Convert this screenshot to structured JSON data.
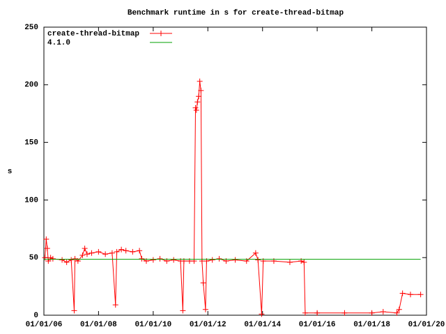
{
  "chart_data": {
    "type": "line",
    "title": "Benchmark runtime in s for create-thread-bitmap",
    "y_label": "s",
    "xlim": [
      "01/01/06",
      "01/01/20"
    ],
    "xticks": [
      "01/01/06",
      "01/01/08",
      "01/01/10",
      "01/01/12",
      "01/01/14",
      "01/01/16",
      "01/01/18",
      "01/01/20"
    ],
    "ylim": [
      0,
      250
    ],
    "yticks": [
      0,
      50,
      100,
      150,
      200,
      250
    ],
    "legend": "top-left",
    "series": [
      {
        "name": "create-thread-bitmap",
        "color": "#ff0000",
        "markers": true,
        "x": [
          "01/15/06",
          "02/01/06",
          "02/15/06",
          "03/01/06",
          "04/01/06",
          "05/01/06",
          "09/01/06",
          "11/01/06",
          "01/01/07",
          "02/10/07",
          "02/20/07",
          "04/01/07",
          "06/01/07",
          "07/01/07",
          "08/01/07",
          "10/01/07",
          "01/01/08",
          "04/01/08",
          "07/01/08",
          "08/15/08",
          "09/01/08",
          "11/01/08",
          "01/01/09",
          "04/01/09",
          "07/01/09",
          "08/01/09",
          "10/01/09",
          "01/01/10",
          "04/01/10",
          "07/01/10",
          "10/01/10",
          "01/01/11",
          "02/01/11",
          "02/15/11",
          "05/01/11",
          "07/01/11",
          "07/20/11",
          "08/01/11",
          "08/15/11",
          "09/01/11",
          "09/15/11",
          "10/01/11",
          "10/15/11",
          "11/01/11",
          "12/01/11",
          "12/15/11",
          "03/01/12",
          "06/01/12",
          "09/01/12",
          "01/01/13",
          "06/01/13",
          "10/01/13",
          "11/01/13",
          "12/20/13",
          "01/10/14",
          "06/01/14",
          "01/01/15",
          "06/01/15",
          "07/10/15",
          "07/25/15",
          "01/01/16",
          "01/01/17",
          "01/01/18",
          "06/01/18",
          "12/01/18",
          "01/01/19",
          "02/15/19",
          "06/01/19",
          "10/15/19"
        ],
        "values": [
          50,
          66,
          58,
          47,
          50,
          49,
          48,
          46,
          48,
          4,
          49,
          47,
          52,
          58,
          53,
          54,
          55,
          53,
          54,
          9,
          55,
          57,
          56,
          55,
          56,
          49,
          47,
          48,
          49,
          47,
          48,
          47,
          4,
          47,
          47,
          47,
          180,
          178,
          185,
          190,
          203,
          195,
          47,
          28,
          5,
          47,
          48,
          49,
          47,
          48,
          47,
          54,
          48,
          1,
          47,
          47,
          46,
          47,
          46,
          2,
          2,
          2,
          2,
          3,
          2,
          5,
          19,
          18,
          18
        ]
      },
      {
        "name": "4.1.0",
        "color": "#00a000",
        "markers": false,
        "x": [
          "01/01/06",
          "10/15/19"
        ],
        "values": [
          48.5,
          48.5
        ]
      }
    ]
  }
}
